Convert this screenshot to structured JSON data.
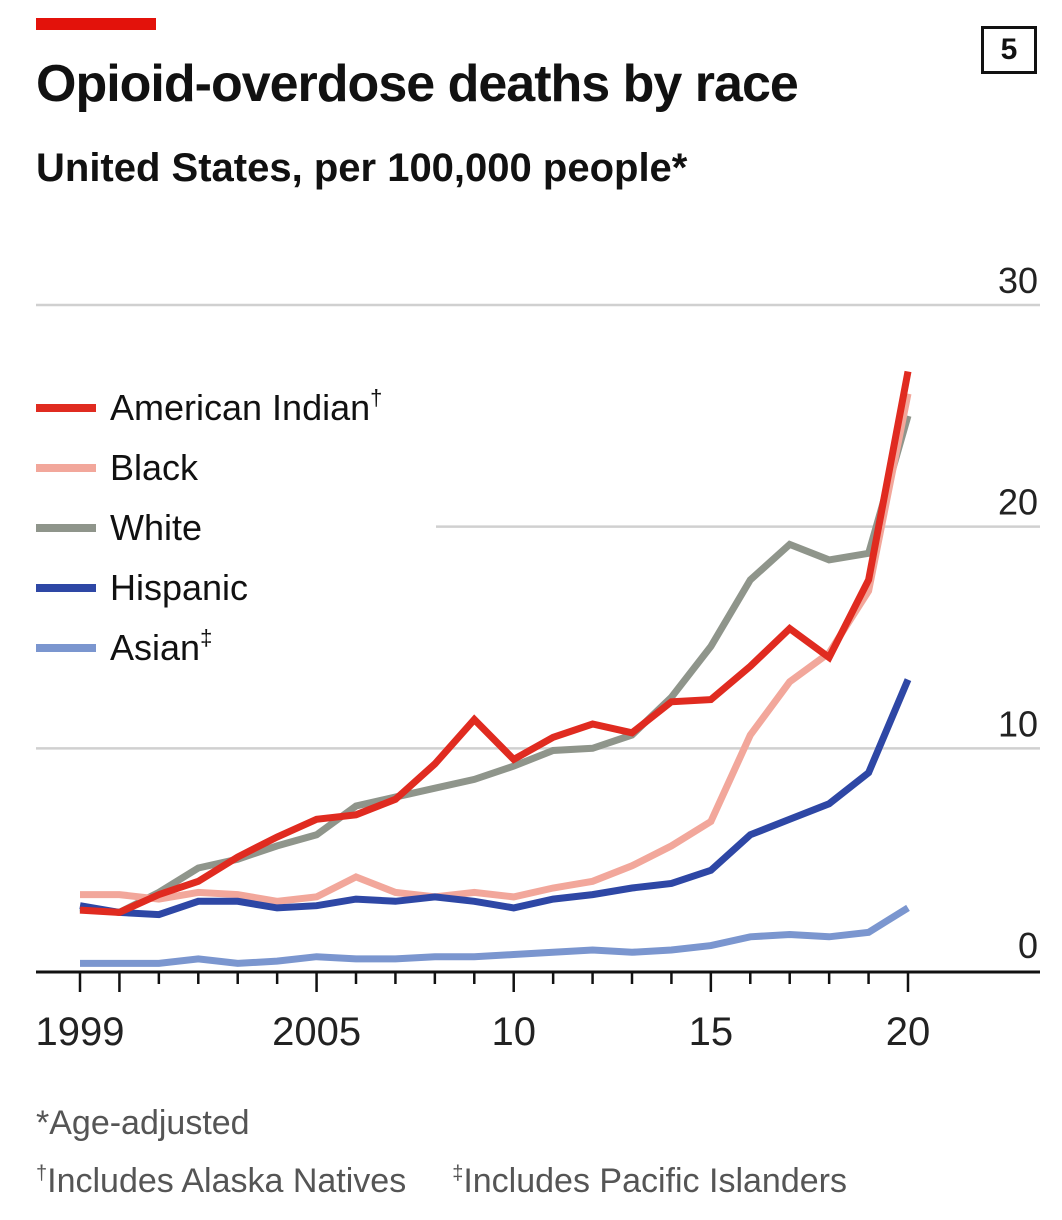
{
  "header": {
    "badge": "5",
    "title": "Opioid-overdose deaths by race",
    "subtitle": "United States, per 100,000 people*"
  },
  "colors": {
    "accent": "#e3120b",
    "grid": "#d0d0d0",
    "axis": "#111111"
  },
  "notes": {
    "age_adjusted": "*Age-adjusted",
    "dagger_mark": "†",
    "dagger_text": "Includes Alaska Natives",
    "double_dagger_mark": "‡",
    "double_dagger_text": "Includes Pacific Islanders"
  },
  "chart_data": {
    "type": "line",
    "title": "Opioid-overdose deaths by race",
    "subtitle": "United States, per 100,000 people*",
    "xlim": [
      1999,
      2020
    ],
    "ylim": [
      0,
      30
    ],
    "y_ticks": [
      0,
      10,
      20,
      30
    ],
    "y_tick_labels": [
      "0",
      "10",
      "20",
      "30"
    ],
    "x_major_ticks": [
      1999,
      2005,
      2010,
      2015,
      2020
    ],
    "x_tick_labels": [
      "1999",
      "2005",
      "10",
      "15",
      "20"
    ],
    "grid": true,
    "legend": "left",
    "x": [
      1999,
      2000,
      2001,
      2002,
      2003,
      2004,
      2005,
      2006,
      2007,
      2008,
      2009,
      2010,
      2011,
      2012,
      2013,
      2014,
      2015,
      2016,
      2017,
      2018,
      2019,
      2020
    ],
    "series": [
      {
        "name": "White",
        "mark": "",
        "color": "#8f958b",
        "values": [
          2.8,
          2.6,
          3.5,
          4.6,
          5.0,
          5.6,
          6.1,
          7.4,
          7.8,
          8.2,
          8.6,
          9.2,
          9.9,
          10.0,
          10.6,
          12.3,
          14.6,
          17.6,
          19.2,
          18.5,
          18.8,
          25.0
        ]
      },
      {
        "name": "Black",
        "mark": "",
        "color": "#f2a79b",
        "values": [
          3.4,
          3.4,
          3.2,
          3.5,
          3.4,
          3.1,
          3.3,
          4.2,
          3.5,
          3.3,
          3.5,
          3.3,
          3.7,
          4.0,
          4.7,
          5.6,
          6.7,
          10.6,
          13.0,
          14.3,
          17.1,
          26.0
        ]
      },
      {
        "name": "Hispanic",
        "mark": "",
        "color": "#2e47a5",
        "values": [
          2.9,
          2.6,
          2.5,
          3.1,
          3.1,
          2.8,
          2.9,
          3.2,
          3.1,
          3.3,
          3.1,
          2.8,
          3.2,
          3.4,
          3.7,
          3.9,
          4.5,
          6.1,
          6.8,
          7.5,
          8.9,
          13.1
        ]
      },
      {
        "name": "Asian",
        "mark": "‡",
        "color": "#7b96cf",
        "values": [
          0.3,
          0.3,
          0.3,
          0.5,
          0.3,
          0.4,
          0.6,
          0.5,
          0.5,
          0.6,
          0.6,
          0.7,
          0.8,
          0.9,
          0.8,
          0.9,
          1.1,
          1.5,
          1.6,
          1.5,
          1.7,
          2.8
        ]
      },
      {
        "name": "American Indian",
        "mark": "†",
        "color": "#e02b20",
        "values": [
          2.7,
          2.6,
          3.4,
          4.0,
          5.1,
          6.0,
          6.8,
          7.0,
          7.7,
          9.3,
          11.3,
          9.5,
          10.5,
          11.1,
          10.7,
          12.1,
          12.2,
          13.7,
          15.4,
          14.1,
          17.6,
          27.0
        ]
      }
    ]
  }
}
